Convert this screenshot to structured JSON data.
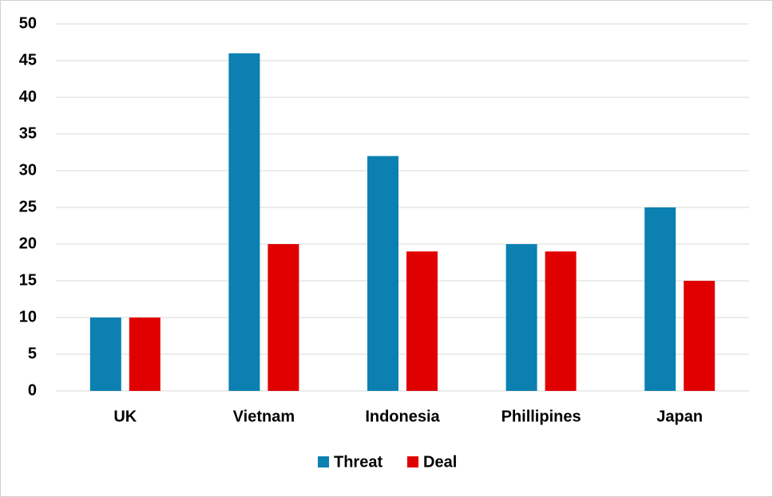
{
  "chart_data": {
    "type": "bar",
    "categories": [
      "UK",
      "Vietnam",
      "Indonesia",
      "Phillipines",
      "Japan"
    ],
    "series": [
      {
        "name": "Threat",
        "color": "#0b80b1",
        "values": [
          10,
          46,
          32,
          20,
          25
        ]
      },
      {
        "name": "Deal",
        "color": "#e00000",
        "values": [
          10,
          20,
          19,
          19,
          15
        ]
      }
    ],
    "ylim": [
      0,
      50
    ],
    "yticks": [
      0,
      5,
      10,
      15,
      20,
      25,
      30,
      35,
      40,
      45,
      50
    ],
    "grid": true,
    "legend": "bottom"
  }
}
